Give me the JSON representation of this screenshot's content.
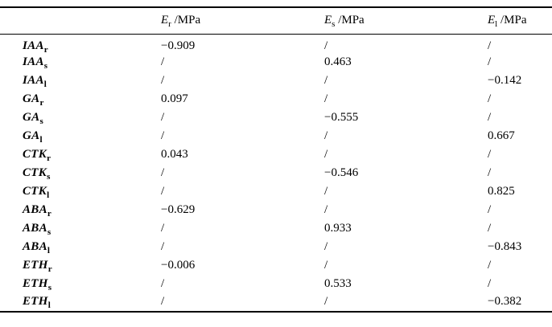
{
  "page": {
    "background_color": "#ffffff",
    "text_color": "#000000"
  },
  "table": {
    "headers": [
      {
        "symbol": "E",
        "subscript": "r",
        "unit": " /MPa"
      },
      {
        "symbol": "E",
        "subscript": "s",
        "unit": " /MPa"
      },
      {
        "symbol": "E",
        "subscript": "l",
        "unit": " /MPa"
      }
    ],
    "empty_cell_marker": "/",
    "rows": [
      {
        "hormone": "IAA",
        "subscript": "r",
        "er": "−0.909",
        "es": "/",
        "el": "/"
      },
      {
        "hormone": "IAA",
        "subscript": "s",
        "er": "/",
        "es": "0.463",
        "el": "/"
      },
      {
        "hormone": "IAA",
        "subscript": "l",
        "er": "/",
        "es": "/",
        "el": "−0.142"
      },
      {
        "hormone": "GA",
        "subscript": "r",
        "er": "0.097",
        "es": "/",
        "el": "/"
      },
      {
        "hormone": "GA",
        "subscript": "s",
        "er": "/",
        "es": "−0.555",
        "el": "/"
      },
      {
        "hormone": "GA",
        "subscript": "l",
        "er": "/",
        "es": "/",
        "el": "0.667"
      },
      {
        "hormone": "CTK",
        "subscript": "r",
        "er": "0.043",
        "es": "/",
        "el": "/"
      },
      {
        "hormone": "CTK",
        "subscript": "s",
        "er": "/",
        "es": "−0.546",
        "el": "/"
      },
      {
        "hormone": "CTK",
        "subscript": "l",
        "er": "/",
        "es": "/",
        "el": "0.825"
      },
      {
        "hormone": "ABA",
        "subscript": "r",
        "er": "−0.629",
        "es": "/",
        "el": "/"
      },
      {
        "hormone": "ABA",
        "subscript": "s",
        "er": "/",
        "es": "0.933",
        "el": "/"
      },
      {
        "hormone": "ABA",
        "subscript": "l",
        "er": "/",
        "es": "/",
        "el": "−0.843"
      },
      {
        "hormone": "ETH",
        "subscript": "r",
        "er": "−0.006",
        "es": "/",
        "el": "/"
      },
      {
        "hormone": "ETH",
        "subscript": "s",
        "er": "/",
        "es": "0.533",
        "el": "/"
      },
      {
        "hormone": "ETH",
        "subscript": "l",
        "er": "/",
        "es": "/",
        "el": "−0.382"
      }
    ]
  },
  "chart_data": {
    "type": "table",
    "columns": [
      "",
      "Er /MPa",
      "Es /MPa",
      "El /MPa"
    ],
    "rows": [
      [
        "IAAr",
        -0.909,
        null,
        null
      ],
      [
        "IAAs",
        null,
        0.463,
        null
      ],
      [
        "IAAl",
        null,
        null,
        -0.142
      ],
      [
        "GAr",
        0.097,
        null,
        null
      ],
      [
        "GAs",
        null,
        -0.555,
        null
      ],
      [
        "GAl",
        null,
        null,
        0.667
      ],
      [
        "CTKr",
        0.043,
        null,
        null
      ],
      [
        "CTKs",
        null,
        -0.546,
        null
      ],
      [
        "CTKl",
        null,
        null,
        0.825
      ],
      [
        "ABAr",
        -0.629,
        null,
        null
      ],
      [
        "ABAs",
        null,
        0.933,
        null
      ],
      [
        "ABAl",
        null,
        null,
        -0.843
      ],
      [
        "ETHr",
        -0.006,
        null,
        null
      ],
      [
        "ETHs",
        null,
        0.533,
        null
      ],
      [
        "ETHl",
        null,
        null,
        -0.382
      ]
    ]
  }
}
